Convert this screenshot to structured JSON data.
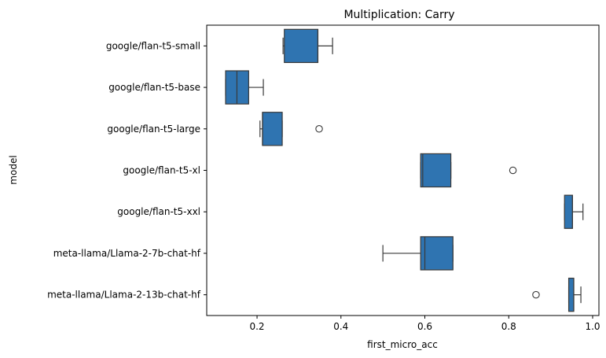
{
  "chart_data": {
    "type": "boxplot",
    "title": "Multiplication: Carry",
    "xlabel": "first_micro_acc",
    "ylabel": "model",
    "orientation": "horizontal",
    "xlim": [
      0.08,
      1.015
    ],
    "xticks": [
      0.2,
      0.4,
      0.6,
      0.8,
      1.0
    ],
    "xtick_labels": [
      "0.2",
      "0.4",
      "0.6",
      "0.8",
      "1.0"
    ],
    "grid": false,
    "box_color": "#2f74b1",
    "line_color": "#3a3a3a",
    "categories": [
      "google/flan-t5-small",
      "google/flan-t5-base",
      "google/flan-t5-large",
      "google/flan-t5-xl",
      "google/flan-t5-xxl",
      "meta-llama/Llama-2-7b-chat-hf",
      "meta-llama/Llama-2-13b-chat-hf"
    ],
    "boxes": [
      {
        "whisker_low": 0.262,
        "q1": 0.265,
        "median": 0.345,
        "q3": 0.345,
        "whisker_high": 0.38,
        "outliers": []
      },
      {
        "whisker_low": 0.125,
        "q1": 0.125,
        "median": 0.152,
        "q3": 0.18,
        "whisker_high": 0.215,
        "outliers": []
      },
      {
        "whisker_low": 0.207,
        "q1": 0.213,
        "median": 0.213,
        "q3": 0.26,
        "whisker_high": 0.26,
        "outliers": [
          0.348
        ]
      },
      {
        "whisker_low": 0.59,
        "q1": 0.59,
        "median": 0.595,
        "q3": 0.662,
        "whisker_high": 0.662,
        "outliers": [
          0.81
        ]
      },
      {
        "whisker_low": 0.933,
        "q1": 0.933,
        "median": 0.952,
        "q3": 0.952,
        "whisker_high": 0.977,
        "outliers": []
      },
      {
        "whisker_low": 0.5,
        "q1": 0.59,
        "median": 0.6,
        "q3": 0.667,
        "whisker_high": 0.667,
        "outliers": []
      },
      {
        "whisker_low": 0.943,
        "q1": 0.943,
        "median": 0.955,
        "q3": 0.955,
        "whisker_high": 0.972,
        "outliers": [
          0.865
        ]
      }
    ]
  }
}
